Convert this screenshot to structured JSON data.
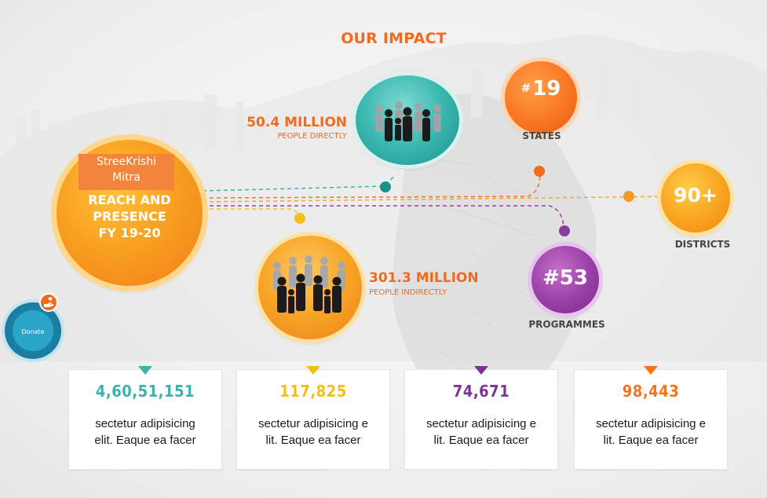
{
  "title": "OUR IMPACT",
  "reach": {
    "org_line1": "StreeKrishi",
    "org_line2": "Mitra",
    "line1": "REACH AND",
    "line2": "PRESENCE",
    "line3": "FY 19-20"
  },
  "direct": {
    "value": "50.4 MILLION",
    "label": "PEOPLE DIRECTLY"
  },
  "indirect": {
    "value": "301.3 MILLION",
    "label": "PEOPLE INDIRECTLY"
  },
  "states": {
    "prefix": "#",
    "value": "19",
    "label": "STATES"
  },
  "districts": {
    "value": "90+",
    "label": "DISTRICTS"
  },
  "programmes": {
    "value": "#53",
    "label": "PROGRAMMES"
  },
  "cards": [
    {
      "value": "4,60,51,151",
      "line1": "sectetur adipisicing",
      "line2": "elit. Eaque ea facer",
      "color": "#3ab3ac"
    },
    {
      "value": "117,825",
      "line1": "sectetur adipisicing e",
      "line2": "lit. Eaque ea facer",
      "color": "#f6bd17"
    },
    {
      "value": "74,671",
      "line1": "sectetur adipisicing e",
      "line2": "lit. Eaque ea facer",
      "color": "#7b3490"
    },
    {
      "value": "98,443",
      "line1": "sectetur adipisicing e",
      "line2": "lit. Eaque ea facer",
      "color": "#f5731c"
    }
  ],
  "donate": {
    "label": "Donate",
    "icon": "hand-heart-icon"
  },
  "colors": {
    "orange": "#f26a1b",
    "teal": "#3ab3ac",
    "yellow": "#f6bd17",
    "purple": "#7b3490"
  }
}
